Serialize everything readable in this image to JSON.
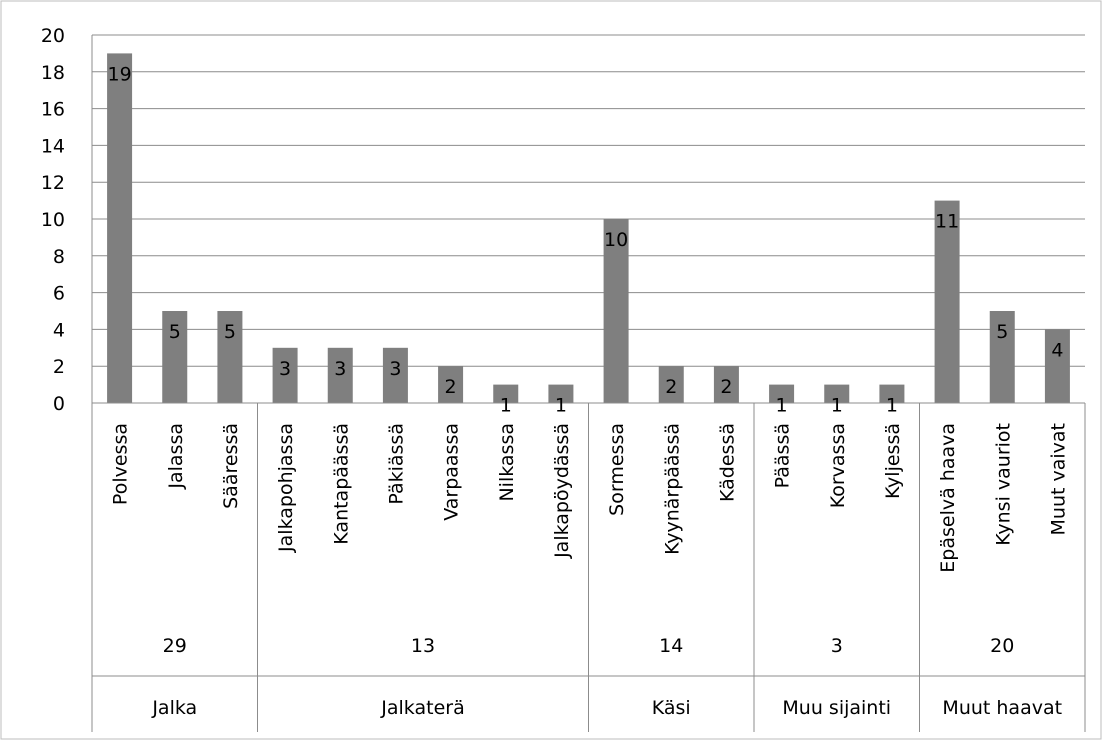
{
  "chart_data": {
    "type": "bar",
    "ylim": [
      0,
      20
    ],
    "yticks": [
      0,
      2,
      4,
      6,
      8,
      10,
      12,
      14,
      16,
      18,
      20
    ],
    "grid": true,
    "bar_color": "#7f7f7f",
    "categories": [
      "Polvessa",
      "Jalassa",
      "Sääressä",
      "Jalkapohjassa",
      "Kantapäässä",
      "Päkiässä",
      "Varpaassa",
      "Nilkassa",
      "Jalkapöydässä",
      "Sormessa",
      "Kyynärpäässä",
      "Kädessä",
      "Päässä",
      "Korvassa",
      "Kyljessä",
      "Epäselvä haava",
      "Kynsi vauriot",
      "Muut  vaivat"
    ],
    "values": [
      19,
      5,
      5,
      3,
      3,
      3,
      2,
      1,
      1,
      10,
      2,
      2,
      1,
      1,
      1,
      11,
      5,
      4
    ],
    "groups": [
      {
        "name": "Jalka",
        "total": "29",
        "count": 3
      },
      {
        "name": "Jalkaterä",
        "total": "13",
        "count": 6
      },
      {
        "name": "Käsi",
        "total": "14",
        "count": 3
      },
      {
        "name": "Muu sijainti",
        "total": "3",
        "count": 3
      },
      {
        "name": "Muut haavat",
        "total": "20",
        "count": 3
      }
    ]
  }
}
